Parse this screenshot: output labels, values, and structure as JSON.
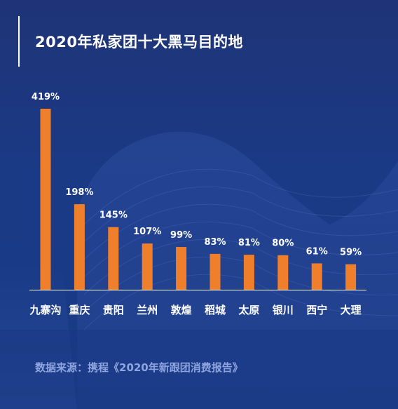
{
  "title": "2020年私家团十大黑马目的地",
  "source": "数据来源：携程《2020年新跟团消费报告》",
  "colors": {
    "bar": "#f07f2c",
    "text": "#ffffff",
    "source_text": "#8fa5df",
    "background": "#1c3880"
  },
  "chart_data": {
    "type": "bar",
    "categories": [
      "九寨沟",
      "重庆",
      "贵阳",
      "兰州",
      "敦煌",
      "稻城",
      "太原",
      "银川",
      "西宁",
      "大理"
    ],
    "values": [
      419,
      198,
      145,
      107,
      99,
      83,
      81,
      80,
      61,
      59
    ],
    "value_labels": [
      "419%",
      "198%",
      "145%",
      "107%",
      "99%",
      "83%",
      "81%",
      "80%",
      "61%",
      "59%"
    ],
    "unit": "%",
    "ylim": [
      0,
      419
    ],
    "grid": false,
    "legend": "none"
  }
}
